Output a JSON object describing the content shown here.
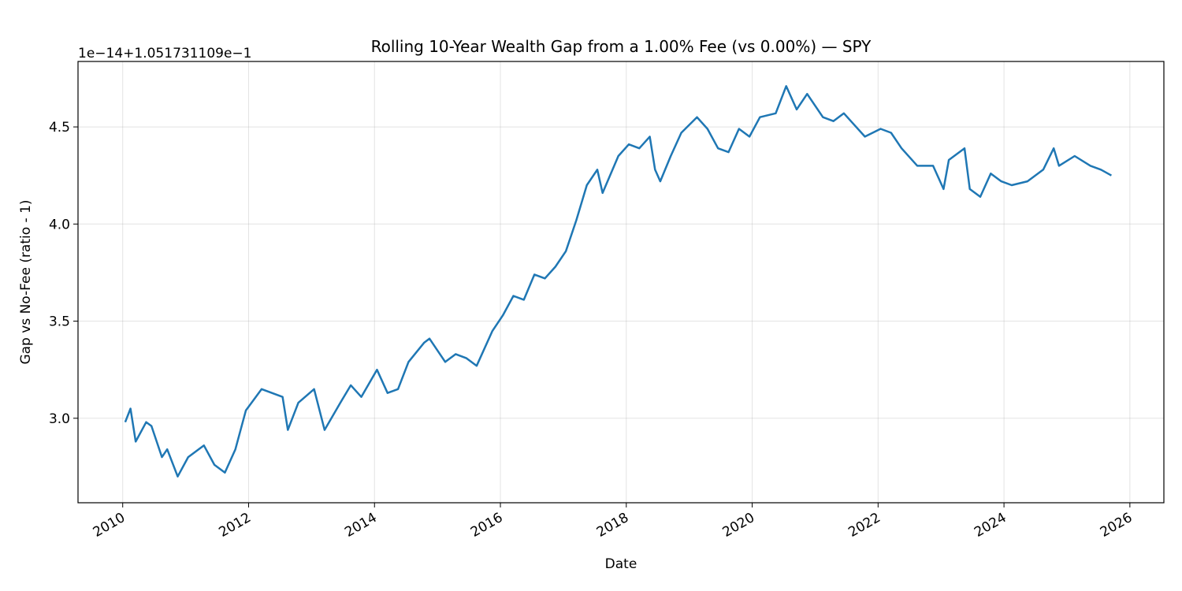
{
  "chart_data": {
    "type": "line",
    "title": "Rolling 10-Year Wealth Gap from a 1.00% Fee (vs 0.00%) — SPY",
    "xlabel": "Date",
    "ylabel": "Gap vs No-Fee (ratio - 1)",
    "offset_text": "1e−14+1.051731109e−1",
    "xlim": [
      "2009-04",
      "2026-07"
    ],
    "ylim": [
      2.565,
      4.837
    ],
    "grid": true,
    "line_color": "#1f77b4",
    "x_ticks": [
      "2010",
      "2012",
      "2014",
      "2016",
      "2018",
      "2020",
      "2022",
      "2024",
      "2026"
    ],
    "y_ticks": [
      "3.0",
      "3.5",
      "4.0",
      "4.5"
    ],
    "points": [
      [
        "2010-01",
        2.98
      ],
      [
        "2010-02",
        3.05
      ],
      [
        "2010-03",
        2.88
      ],
      [
        "2010-05",
        2.98
      ],
      [
        "2010-06",
        2.96
      ],
      [
        "2010-08",
        2.8
      ],
      [
        "2010-09",
        2.84
      ],
      [
        "2010-11",
        2.7
      ],
      [
        "2011-01",
        2.8
      ],
      [
        "2011-04",
        2.86
      ],
      [
        "2011-06",
        2.76
      ],
      [
        "2011-08",
        2.72
      ],
      [
        "2011-10",
        2.84
      ],
      [
        "2011-12",
        3.04
      ],
      [
        "2012-03",
        3.15
      ],
      [
        "2012-07",
        3.11
      ],
      [
        "2012-08",
        2.94
      ],
      [
        "2012-10",
        3.08
      ],
      [
        "2013-01",
        3.15
      ],
      [
        "2013-03",
        2.94
      ],
      [
        "2013-06",
        3.08
      ],
      [
        "2013-08",
        3.17
      ],
      [
        "2013-10",
        3.11
      ],
      [
        "2014-01",
        3.25
      ],
      [
        "2014-03",
        3.13
      ],
      [
        "2014-05",
        3.15
      ],
      [
        "2014-07",
        3.29
      ],
      [
        "2014-10",
        3.39
      ],
      [
        "2014-11",
        3.41
      ],
      [
        "2015-02",
        3.29
      ],
      [
        "2015-04",
        3.33
      ],
      [
        "2015-06",
        3.31
      ],
      [
        "2015-08",
        3.27
      ],
      [
        "2015-11",
        3.45
      ],
      [
        "2016-01",
        3.53
      ],
      [
        "2016-03",
        3.63
      ],
      [
        "2016-05",
        3.61
      ],
      [
        "2016-07",
        3.74
      ],
      [
        "2016-09",
        3.72
      ],
      [
        "2016-11",
        3.78
      ],
      [
        "2017-01",
        3.86
      ],
      [
        "2017-03",
        4.02
      ],
      [
        "2017-05",
        4.2
      ],
      [
        "2017-07",
        4.28
      ],
      [
        "2017-08",
        4.16
      ],
      [
        "2017-11",
        4.35
      ],
      [
        "2018-01",
        4.41
      ],
      [
        "2018-03",
        4.39
      ],
      [
        "2018-05",
        4.45
      ],
      [
        "2018-06",
        4.28
      ],
      [
        "2018-07",
        4.22
      ],
      [
        "2018-09",
        4.35
      ],
      [
        "2018-11",
        4.47
      ],
      [
        "2019-02",
        4.55
      ],
      [
        "2019-04",
        4.49
      ],
      [
        "2019-06",
        4.39
      ],
      [
        "2019-08",
        4.37
      ],
      [
        "2019-10",
        4.49
      ],
      [
        "2019-12",
        4.45
      ],
      [
        "2020-02",
        4.55
      ],
      [
        "2020-05",
        4.57
      ],
      [
        "2020-07",
        4.71
      ],
      [
        "2020-09",
        4.59
      ],
      [
        "2020-11",
        4.67
      ],
      [
        "2021-02",
        4.55
      ],
      [
        "2021-04",
        4.53
      ],
      [
        "2021-06",
        4.57
      ],
      [
        "2021-08",
        4.51
      ],
      [
        "2021-10",
        4.45
      ],
      [
        "2022-01",
        4.49
      ],
      [
        "2022-03",
        4.47
      ],
      [
        "2022-05",
        4.39
      ],
      [
        "2022-08",
        4.3
      ],
      [
        "2022-11",
        4.3
      ],
      [
        "2023-01",
        4.18
      ],
      [
        "2023-02",
        4.33
      ],
      [
        "2023-05",
        4.39
      ],
      [
        "2023-06",
        4.18
      ],
      [
        "2023-08",
        4.14
      ],
      [
        "2023-10",
        4.26
      ],
      [
        "2023-12",
        4.22
      ],
      [
        "2024-02",
        4.2
      ],
      [
        "2024-05",
        4.22
      ],
      [
        "2024-08",
        4.28
      ],
      [
        "2024-10",
        4.39
      ],
      [
        "2024-11",
        4.3
      ],
      [
        "2025-02",
        4.35
      ],
      [
        "2025-05",
        4.3
      ],
      [
        "2025-07",
        4.28
      ],
      [
        "2025-09",
        4.25
      ]
    ]
  }
}
